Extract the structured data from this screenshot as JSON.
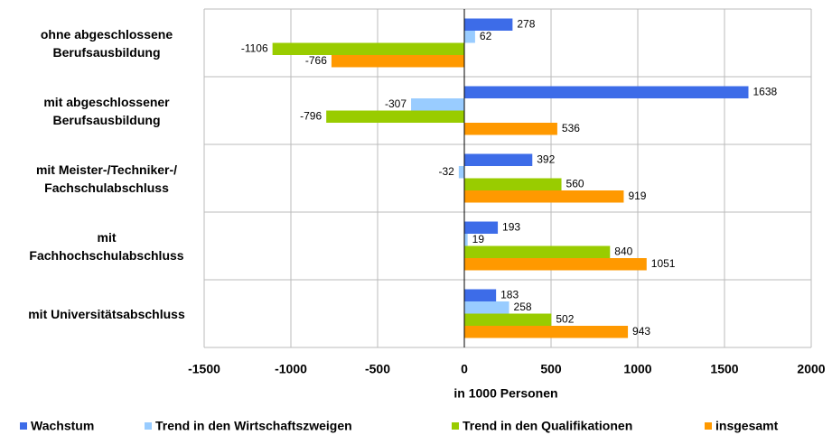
{
  "chart_data": {
    "type": "bar",
    "orientation": "horizontal",
    "categories": [
      "ohne abgeschlossene\nBerufsausbildung",
      "mit abgeschlossener\nBerufsausbildung",
      "mit Meister-/Techniker-/\nFachschulabschluss",
      "mit\nFachhochschulabschluss",
      "mit Universitätsabschluss"
    ],
    "series": [
      {
        "name": "Wachstum",
        "color": "#3d6ce8",
        "values": [
          278,
          1638,
          392,
          193,
          183
        ]
      },
      {
        "name": "Trend in den Wirtschaftszweigen",
        "color": "#99ccff",
        "values": [
          62,
          -307,
          -32,
          19,
          258
        ]
      },
      {
        "name": "Trend in den Qualifikationen",
        "color": "#99cc00",
        "values": [
          -1106,
          -796,
          560,
          840,
          502
        ]
      },
      {
        "name": "insgesamt",
        "color": "#ff9900",
        "values": [
          -766,
          536,
          919,
          1051,
          943
        ]
      }
    ],
    "xlabel": "in 1000 Personen",
    "xlim": [
      -1500,
      2000
    ],
    "xticks": [
      -1500,
      -1000,
      -500,
      0,
      500,
      1000,
      1500,
      2000
    ],
    "grid": true,
    "legend": "bottom"
  }
}
